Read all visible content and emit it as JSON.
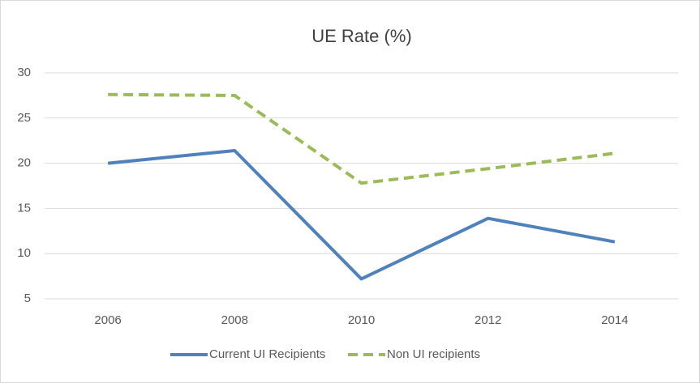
{
  "chart_data": {
    "type": "line",
    "title": "UE Rate (%)",
    "categories": [
      "2006",
      "2008",
      "2010",
      "2012",
      "2014"
    ],
    "series": [
      {
        "name": "Current UI Recipients",
        "color": "#4f81bd",
        "style": "solid",
        "values": [
          20.0,
          21.4,
          7.2,
          13.9,
          11.3
        ]
      },
      {
        "name": "Non UI recipients",
        "color": "#9bbb59",
        "style": "dashed",
        "values": [
          27.6,
          27.5,
          17.8,
          19.4,
          21.1
        ]
      }
    ],
    "ylim": [
      5,
      30
    ],
    "yticks": [
      5,
      10,
      15,
      20,
      25,
      30
    ],
    "grid": true,
    "legend": "bottom"
  }
}
